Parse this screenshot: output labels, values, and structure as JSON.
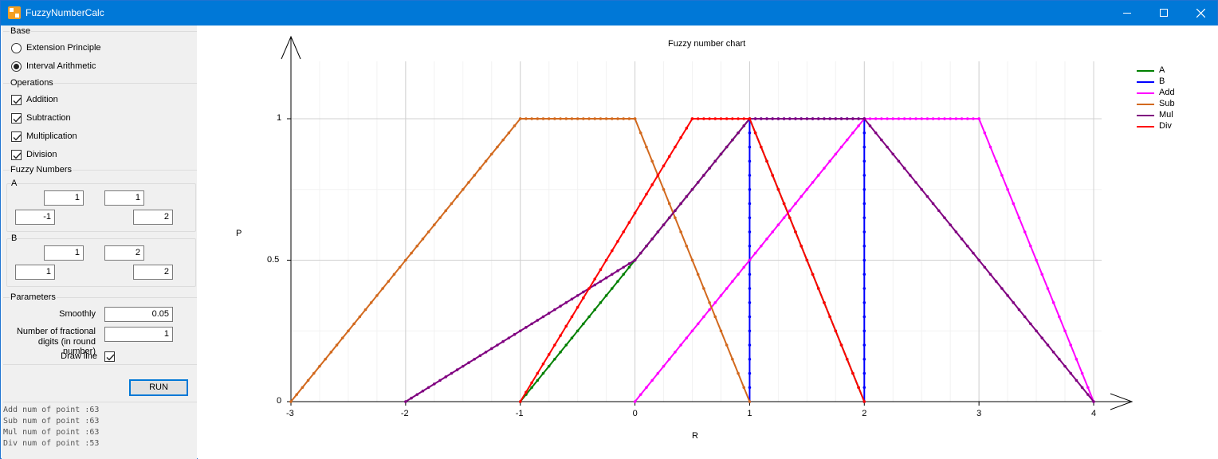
{
  "window": {
    "title": "FuzzyNumberCalc",
    "accent": "#0078d7"
  },
  "base": {
    "label": "Base",
    "options": [
      {
        "label": "Extension Principle",
        "selected": false
      },
      {
        "label": "Interval Arithmetic",
        "selected": true
      }
    ]
  },
  "operations": {
    "label": "Operations",
    "items": [
      {
        "label": "Addition",
        "checked": true
      },
      {
        "label": "Subtraction",
        "checked": true
      },
      {
        "label": "Multiplication",
        "checked": true
      },
      {
        "label": "Division",
        "checked": true
      }
    ]
  },
  "fuzzy_numbers": {
    "label": "Fuzzy Numbers",
    "A": {
      "label": "A",
      "core_left": "1",
      "core_right": "1",
      "support_left": "-1",
      "support_right": "2"
    },
    "B": {
      "label": "B",
      "core_left": "1",
      "core_right": "2",
      "support_left": "1",
      "support_right": "2"
    }
  },
  "parameters": {
    "label": "Parameters",
    "smoothly_label": "Smoothly",
    "smoothly_value": "0.05",
    "digits_label_line1": "Number of fractional",
    "digits_label_line2": "digits (in round number)",
    "digits_value": "1",
    "draw_line_label": "Draw line",
    "draw_line_checked": true
  },
  "run_label": "RUN",
  "log_lines": [
    "Add num of point :63",
    "Sub num of point :63",
    "Mul num of point :63",
    "Div num of point :53"
  ],
  "chart_data": {
    "type": "line",
    "title": "Fuzzy number chart",
    "xlabel": "R",
    "ylabel": "P",
    "xlim": [
      -3,
      4
    ],
    "ylim": [
      0,
      1
    ],
    "x_ticks": [
      -3,
      -2,
      -1,
      0,
      1,
      2,
      3,
      4
    ],
    "y_ticks": [
      0,
      0.5,
      1
    ],
    "grid": true,
    "legend": "top-right",
    "series": [
      {
        "name": "A",
        "color": "#008000",
        "points": [
          [
            -1,
            0
          ],
          [
            1,
            1
          ],
          [
            2,
            0
          ]
        ]
      },
      {
        "name": "B",
        "color": "#0000ff",
        "points": [
          [
            1,
            0
          ],
          [
            1,
            1
          ],
          [
            2,
            1
          ],
          [
            2,
            0
          ]
        ]
      },
      {
        "name": "Add",
        "color": "#ff00ff",
        "points": [
          [
            0,
            0
          ],
          [
            2,
            1
          ],
          [
            3,
            1
          ],
          [
            4,
            0
          ]
        ]
      },
      {
        "name": "Sub",
        "color": "#d2691e",
        "points": [
          [
            -3,
            0
          ],
          [
            -1,
            1
          ],
          [
            0,
            1
          ],
          [
            1,
            0
          ]
        ]
      },
      {
        "name": "Mul",
        "color": "#800080",
        "points": [
          [
            -2,
            0
          ],
          [
            0,
            0.5
          ],
          [
            1,
            1
          ],
          [
            2,
            1
          ],
          [
            4,
            0
          ]
        ]
      },
      {
        "name": "Div",
        "color": "#ff0000",
        "points": [
          [
            -1,
            0
          ],
          [
            0.5,
            1
          ],
          [
            1,
            1
          ],
          [
            2,
            0
          ]
        ]
      }
    ]
  }
}
